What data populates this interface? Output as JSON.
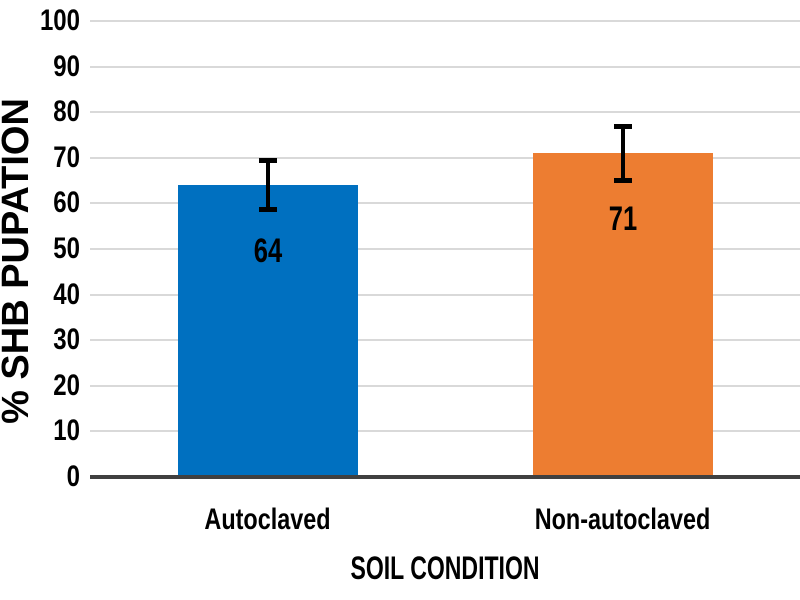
{
  "chart_data": {
    "type": "bar",
    "title": "",
    "xlabel": "SOIL CONDITION",
    "ylabel": "% SHB PUPATION",
    "categories": [
      "Autoclaved",
      "Non-autoclaved"
    ],
    "values": [
      64,
      71
    ],
    "value_labels": [
      "64",
      "71"
    ],
    "error_bars": [
      5.5,
      6
    ],
    "bar_colors": [
      "#0070C0",
      "#ED7D31"
    ],
    "ylim": [
      0,
      100
    ],
    "yticks": [
      0,
      10,
      20,
      30,
      40,
      50,
      60,
      70,
      80,
      90,
      100
    ],
    "grid": "horizontal-only",
    "legend": "none",
    "colors": {
      "gridline": "#D9D9D9",
      "axis_line": "#404040",
      "text": "#000000",
      "background": "#FFFFFF"
    }
  }
}
